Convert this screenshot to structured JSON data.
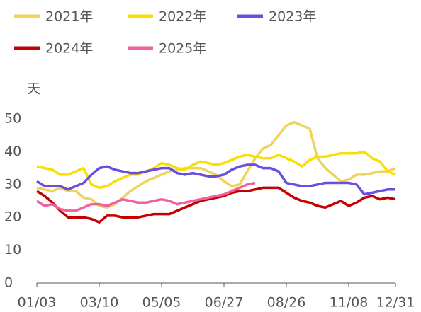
{
  "chart_data": {
    "type": "line",
    "y_label": "天",
    "categories": [
      "01/03",
      null,
      null,
      null,
      null,
      null,
      null,
      null,
      "03/10",
      null,
      null,
      null,
      null,
      null,
      null,
      null,
      "05/05",
      null,
      null,
      null,
      null,
      null,
      null,
      null,
      "06/27",
      null,
      null,
      null,
      null,
      null,
      null,
      null,
      "08/26",
      null,
      null,
      null,
      null,
      null,
      null,
      null,
      "11/08",
      null,
      null,
      null,
      null,
      null,
      "12/31"
    ],
    "ylim": [
      0,
      50
    ],
    "yticks": [
      0,
      10,
      20,
      30,
      40,
      50
    ],
    "grid": false,
    "series": [
      {
        "name": "2021年",
        "color": "#efd35c",
        "values": [
          29,
          28.5,
          28,
          29,
          28,
          28,
          26,
          25.5,
          23.5,
          23,
          24,
          26,
          28,
          29.5,
          31,
          32,
          33,
          34,
          34.5,
          35,
          35,
          35,
          34,
          33,
          31,
          29.5,
          30,
          34,
          38,
          41,
          42,
          45,
          48,
          49,
          48,
          47,
          38,
          35,
          33,
          31,
          31.5,
          33,
          33,
          33.5,
          34,
          34,
          35
        ]
      },
      {
        "name": "2022年",
        "color": "#f7e000",
        "values": [
          35.5,
          35,
          34.5,
          33,
          33,
          34,
          35,
          30,
          29,
          29.5,
          31,
          32,
          33,
          33,
          34,
          35,
          36.5,
          36,
          35,
          34.5,
          36,
          37,
          36.5,
          36,
          36.5,
          37.5,
          38.5,
          39,
          38.5,
          38,
          38,
          39,
          38,
          37,
          35.5,
          37.5,
          38.5,
          38.5,
          39,
          39.5,
          39.5,
          39.5,
          40,
          38,
          37,
          34,
          33
        ]
      },
      {
        "name": "2023年",
        "color": "#6b4ee0",
        "values": [
          31,
          29.5,
          29.5,
          29.5,
          28.5,
          29.5,
          30.5,
          33,
          35,
          35.5,
          34.5,
          34,
          33.5,
          33.5,
          34,
          34.5,
          35,
          35,
          33.5,
          33,
          33.5,
          33,
          32.5,
          32.5,
          33,
          34.5,
          35.5,
          36,
          36,
          35,
          35,
          34,
          30.5,
          30,
          29.5,
          29.5,
          30,
          30.5,
          30.5,
          30.5,
          30.5,
          30,
          27,
          27.5,
          28,
          28.5,
          28.5
        ]
      },
      {
        "name": "2024年",
        "color": "#c40000",
        "values": [
          28,
          26.5,
          24.5,
          22,
          20,
          20,
          20,
          19.5,
          18.5,
          20.5,
          20.5,
          20,
          20,
          20,
          20.5,
          21,
          21,
          21,
          22,
          23,
          24,
          25,
          25.5,
          26,
          26.5,
          27.5,
          28,
          28,
          28.5,
          29,
          29,
          29,
          27.5,
          26,
          25,
          24.5,
          23.5,
          23,
          24,
          25,
          23.5,
          24.5,
          26,
          26.5,
          25.5,
          26,
          25.5
        ]
      },
      {
        "name": "2025年",
        "color": "#f060a0",
        "values": [
          25,
          23.5,
          24,
          22.5,
          22,
          22,
          23,
          24,
          24,
          23.5,
          24.5,
          25.5,
          25,
          24.5,
          24.5,
          25,
          25.5,
          25,
          24,
          24.5,
          25,
          25.5,
          26,
          26.5,
          27,
          28,
          29,
          30,
          30.5,
          null,
          null,
          null,
          null,
          null,
          null,
          null,
          null,
          null,
          null,
          null,
          null,
          null,
          null,
          null,
          null,
          null,
          null
        ]
      }
    ]
  }
}
